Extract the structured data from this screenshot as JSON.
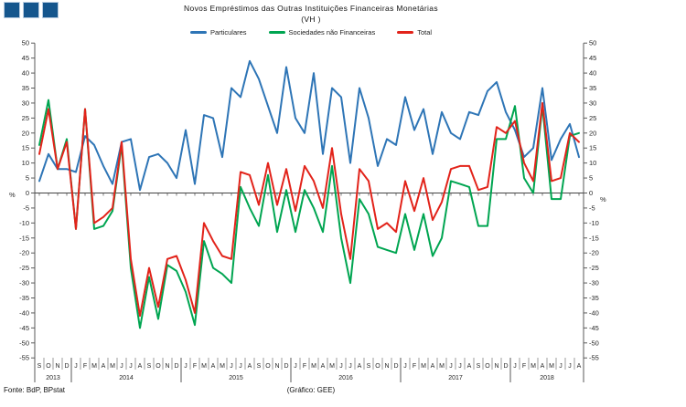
{
  "header": {
    "title": "Novos Empréstimos das Outras Instituições Financeiras Monetárias",
    "subtitle": "(VH )",
    "logo_color": "#15568D",
    "logo_square_count": 3
  },
  "legend": {
    "items": [
      {
        "label": "Particulares",
        "color": "#2E75B6"
      },
      {
        "label": "Sociedades não Financeiras",
        "color": "#00A551"
      },
      {
        "label": "Total",
        "color": "#E2231A"
      }
    ]
  },
  "chart_data": {
    "type": "line",
    "title": "Novos Empréstimos das Outras Instituições Financeiras Monetárias (VH)",
    "unit": "%",
    "ylim": [
      -55,
      50
    ],
    "ytick_step": 5,
    "grid": false,
    "legend_position": "top",
    "months": [
      "S",
      "O",
      "N",
      "D",
      "J",
      "F",
      "M",
      "A",
      "M",
      "J",
      "J",
      "A",
      "S",
      "O",
      "N",
      "D",
      "J",
      "F",
      "M",
      "A",
      "M",
      "J",
      "J",
      "A",
      "S",
      "O",
      "N",
      "D",
      "J",
      "F",
      "M",
      "A",
      "M",
      "J",
      "J",
      "A",
      "S",
      "O",
      "N",
      "D",
      "J",
      "F",
      "M",
      "A",
      "M",
      "J",
      "J",
      "A",
      "S",
      "O",
      "N",
      "D",
      "J",
      "F",
      "M",
      "A",
      "M",
      "J",
      "J",
      "A"
    ],
    "years": [
      {
        "label": "2013",
        "months": 4
      },
      {
        "label": "2014",
        "months": 12
      },
      {
        "label": "2015",
        "months": 12
      },
      {
        "label": "2016",
        "months": 12
      },
      {
        "label": "2017",
        "months": 12
      },
      {
        "label": "2018",
        "months": 8
      }
    ],
    "series": [
      {
        "name": "Particulares",
        "color": "#2E75B6",
        "values": [
          4,
          13,
          8,
          8,
          7,
          19,
          16,
          9,
          3,
          17,
          18,
          1,
          12,
          13,
          10,
          5,
          21,
          3,
          26,
          25,
          12,
          35,
          32,
          44,
          38,
          29,
          20,
          42,
          25,
          20,
          40,
          13,
          35,
          32,
          10,
          35,
          25,
          9,
          18,
          16,
          32,
          21,
          28,
          13,
          27,
          20,
          18,
          27,
          26,
          34,
          37,
          27,
          21,
          12,
          15,
          35,
          11,
          18,
          23,
          12
        ]
      },
      {
        "name": "Sociedades não Financeiras",
        "color": "#00A551",
        "values": [
          16,
          31,
          8,
          18,
          -12,
          28,
          -12,
          -11,
          -6,
          16,
          -25,
          -45,
          -28,
          -42,
          -24,
          -26,
          -33,
          -44,
          -16,
          -25,
          -27,
          -30,
          2,
          -5,
          -11,
          6,
          -13,
          1,
          -13,
          1,
          -5,
          -13,
          9,
          -15,
          -30,
          -2,
          -7,
          -18,
          -19,
          -20,
          -7,
          -19,
          -7,
          -21,
          -15,
          4,
          3,
          2,
          -11,
          -11,
          18,
          18,
          29,
          5,
          0,
          29,
          -2,
          -2,
          19,
          20
        ]
      },
      {
        "name": "Total",
        "color": "#E2231A",
        "values": [
          13,
          28,
          8,
          17,
          -12,
          28,
          -10,
          -8,
          -5,
          17,
          -22,
          -41,
          -25,
          -38,
          -22,
          -21,
          -29,
          -40,
          -10,
          -16,
          -21,
          -22,
          7,
          6,
          -4,
          10,
          -4,
          8,
          -6,
          9,
          4,
          -5,
          15,
          -7,
          -22,
          8,
          4,
          -12,
          -10,
          -13,
          4,
          -6,
          5,
          -9,
          -3,
          8,
          9,
          9,
          1,
          2,
          22,
          20,
          24,
          10,
          4,
          30,
          4,
          5,
          20,
          17
        ]
      }
    ]
  },
  "footer": {
    "source": "Fonte: BdP, BPstat",
    "credit": "(Gráfico: GEE)"
  }
}
